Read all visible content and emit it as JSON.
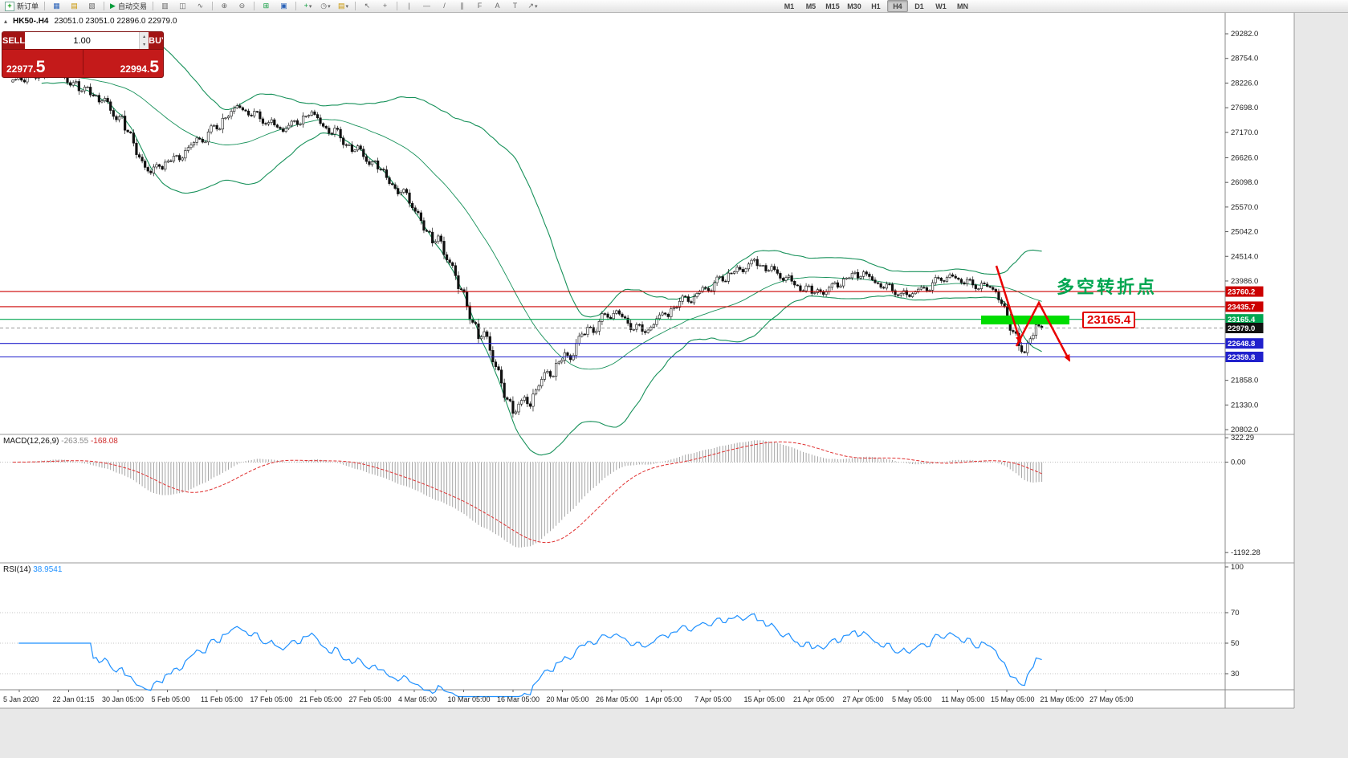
{
  "toolbar": {
    "new_order_label": "新订单",
    "autotrade_label": "自动交易",
    "timeframes": [
      "M1",
      "M5",
      "M15",
      "M30",
      "H1",
      "H4",
      "D1",
      "W1",
      "MN"
    ],
    "active_timeframe": "H4"
  },
  "icons": {
    "collapse": "▴",
    "new_order_plus": "+",
    "market_watch": "▦",
    "data_window": "▤",
    "navigator": "▧",
    "autotrade_play": "▶",
    "bars_chart": "▥",
    "candles_chart": "◫",
    "line_chart": "∿",
    "zoom_in": "⊕",
    "zoom_out": "⊖",
    "new_chart": "⊞",
    "cascade_windows": "▣",
    "indicators_plus": "+",
    "periods_clock": "◷",
    "templates": "▤",
    "cursor": "↖",
    "crosshair": "+",
    "vertical_line": "|",
    "horizontal_line": "—",
    "trendline": "/",
    "channel": "∥",
    "fibonacci": "F",
    "text": "A",
    "text_label": "T",
    "arrows_tool": "↗",
    "dropdown": "▾",
    "spin_up": "▴",
    "spin_down": "▾"
  },
  "symbol_header": {
    "symbol": "HK50-.H4",
    "ohlc": "23051.0 23051.0 22896.0 22979.0"
  },
  "trade_panel": {
    "sell_label": "SELL",
    "buy_label": "BUY",
    "volume": "1.00",
    "sell_price_main": "22977.",
    "sell_price_big": "5",
    "buy_price_main": "22994.",
    "buy_price_big": "5"
  },
  "annotations": {
    "turning_point_text": "多空转折点",
    "price_tag_text": "23165.4"
  },
  "chart_data": {
    "type": "candlestick",
    "symbol": "HK50-",
    "timeframe": "H4",
    "scale": {
      "y_max": 29730,
      "y_min": 20700
    },
    "y_axis_ticks": [
      {
        "price": 29282,
        "label": "29282.0"
      },
      {
        "price": 28754,
        "label": "28754.0"
      },
      {
        "price": 28226,
        "label": "28226.0"
      },
      {
        "price": 27698,
        "label": "27698.0"
      },
      {
        "price": 27170,
        "label": "27170.0"
      },
      {
        "price": 26626,
        "label": "26626.0"
      },
      {
        "price": 26098,
        "label": "26098.0"
      },
      {
        "price": 25570,
        "label": "25570.0"
      },
      {
        "price": 25042,
        "label": "25042.0"
      },
      {
        "price": 24514,
        "label": "24514.0"
      },
      {
        "price": 23986,
        "label": "23986.0"
      },
      {
        "price": 21858,
        "label": "21858.0"
      },
      {
        "price": 21330,
        "label": "21330.0"
      },
      {
        "price": 20802,
        "label": "20802.0"
      }
    ],
    "price_lines": [
      {
        "price": 23760.2,
        "label": "23760.2",
        "color": "#cc0000",
        "current": false
      },
      {
        "price": 23435.7,
        "label": "23435.7",
        "color": "#cc0000",
        "current": false
      },
      {
        "price": 23165.4,
        "label": "23165.4",
        "color": "#00a651",
        "current": false
      },
      {
        "price": 22979.0,
        "label": "22979.0",
        "color": "#111111",
        "current": true
      },
      {
        "price": 22648.8,
        "label": "22648.8",
        "color": "#2020cc",
        "current": false
      },
      {
        "price": 22359.8,
        "label": "22359.8",
        "color": "#2020cc",
        "current": false
      }
    ],
    "x_axis_labels": [
      "5 Jan 2020",
      "22 Jan 01:15",
      "30 Jan 05:00",
      "5 Feb 05:00",
      "11 Feb 05:00",
      "17 Feb 05:00",
      "21 Feb 05:00",
      "27 Feb 05:00",
      "4 Mar 05:00",
      "10 Mar 05:00",
      "16 Mar 05:00",
      "20 Mar 05:00",
      "26 Mar 05:00",
      "1 Apr 05:00",
      "7 Apr 05:00",
      "15 Apr 05:00",
      "21 Apr 05:00",
      "27 Apr 05:00",
      "5 May 05:00",
      "11 May 05:00",
      "15 May 05:00",
      "21 May 05:00",
      "27 May 05:00"
    ],
    "bollinger_color": "#17915a",
    "candles_close_approx": [
      28290,
      28360,
      28250,
      28420,
      28330,
      28470,
      28380,
      28520,
      28430,
      28340,
      28180,
      28260,
      28060,
      28140,
      27950,
      27820,
      27900,
      27640,
      27440,
      27520,
      27180,
      26940,
      26640,
      26420,
      26300,
      26480,
      26380,
      26560,
      26660,
      26580,
      26780,
      26900,
      27050,
      26960,
      27180,
      27320,
      27240,
      27480,
      27620,
      27740,
      27650,
      27540,
      27620,
      27460,
      27350,
      27440,
      27280,
      27190,
      27320,
      27420,
      27350,
      27520,
      27610,
      27480,
      27300,
      27150,
      27260,
      27050,
      26890,
      26760,
      26880,
      26650,
      26480,
      26560,
      26380,
      26200,
      26050,
      25850,
      25950,
      25650,
      25480,
      25280,
      25050,
      24800,
      24950,
      24550,
      24380,
      24100,
      23800,
      23450,
      23100,
      22750,
      22900,
      22500,
      22150,
      21800,
      21450,
      21150,
      21350,
      21500,
      21300,
      21650,
      21880,
      22050,
      21950,
      22250,
      22450,
      22300,
      22650,
      22850,
      23000,
      22880,
      23120,
      23280,
      23180,
      23350,
      23220,
      23080,
      22950,
      23050,
      22880,
      23000,
      23180,
      23300,
      23220,
      23420,
      23550,
      23650,
      23520,
      23720,
      23850,
      23780,
      23950,
      24080,
      23980,
      24150,
      24280,
      24180,
      24350,
      24450,
      24320,
      24200,
      24300,
      24150,
      24000,
      24100,
      23900,
      23780,
      23880,
      23720,
      23800,
      23700,
      23850,
      23950,
      23880,
      24050,
      24150,
      24050,
      24180,
      24080,
      23950,
      23850,
      23920,
      23780,
      23680,
      23780,
      23650,
      23750,
      23850,
      23780,
      23950,
      24050,
      23980,
      24120,
      24050,
      23950,
      24020,
      23900,
      23820,
      23920,
      23850,
      23750,
      23500,
      23200,
      22900,
      22600,
      22450,
      22750,
      23050,
      22979
    ],
    "indicators": {
      "macd": {
        "label": "MACD(12,26,9)",
        "main_str": "-263.55",
        "signal_str": "-168.08",
        "scale_labels": [
          {
            "v": 322.29,
            "label": "322.29"
          },
          {
            "v": 0,
            "label": "0.00"
          },
          {
            "v": -1192.28,
            "label": "-1192.28"
          }
        ]
      },
      "rsi": {
        "label": "RSI(14)",
        "value_str": "38.9541",
        "scale_labels": [
          {
            "v": 100,
            "label": "100"
          },
          {
            "v": 70,
            "label": "70"
          },
          {
            "v": 50,
            "label": "50"
          },
          {
            "v": 30,
            "label": "30"
          }
        ]
      }
    }
  }
}
